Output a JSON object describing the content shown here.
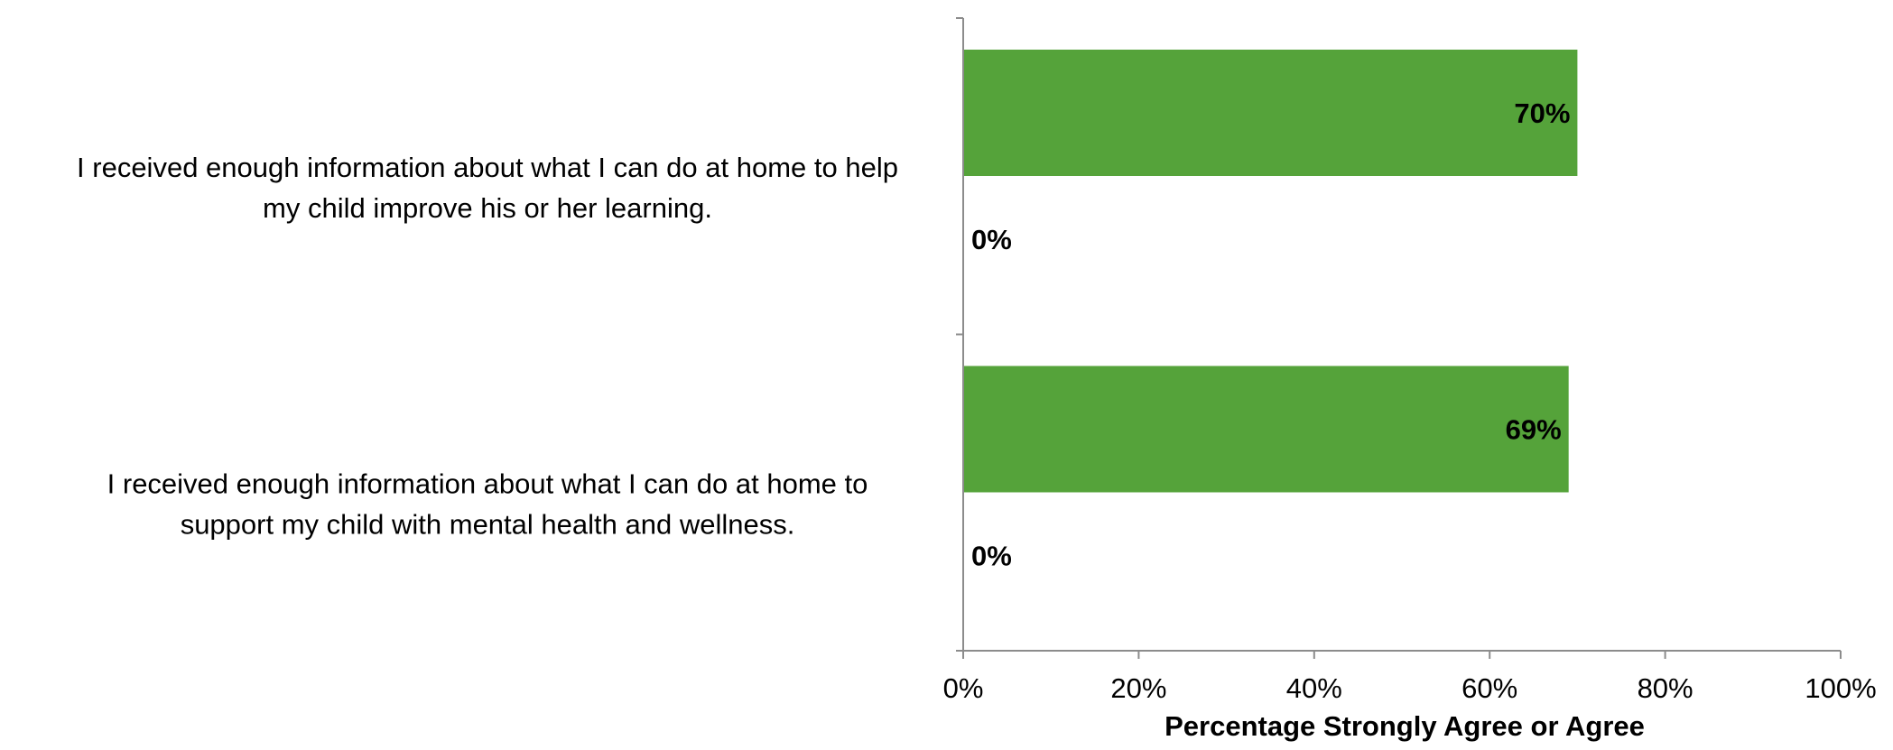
{
  "chart_data": {
    "type": "bar",
    "orientation": "horizontal",
    "xlabel": "Percentage Strongly Agree or Agree",
    "xlim": [
      0,
      100
    ],
    "x_ticks": [
      "0%",
      "20%",
      "40%",
      "60%",
      "80%",
      "100%"
    ],
    "categories": [
      {
        "lines": [
          "I received enough information about what I can do at home to help",
          "my child improve his or her learning."
        ]
      },
      {
        "lines": [
          "I received enough information about what I can do at home to",
          "support my child with mental health and wellness."
        ]
      }
    ],
    "series": [
      {
        "color": "#55a33a",
        "values": [
          70,
          69
        ],
        "labels": [
          "70%",
          "69%"
        ]
      },
      {
        "color": "#55a33a",
        "values": [
          0,
          0
        ],
        "labels": [
          "0%",
          "0%"
        ]
      }
    ],
    "grid": false,
    "legend": "none"
  }
}
